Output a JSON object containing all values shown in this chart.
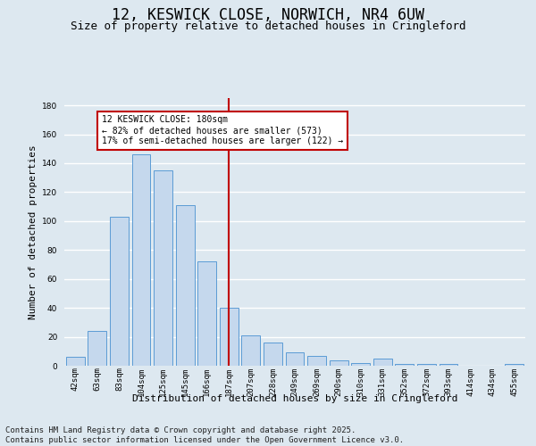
{
  "title": "12, KESWICK CLOSE, NORWICH, NR4 6UW",
  "subtitle": "Size of property relative to detached houses in Cringleford",
  "xlabel": "Distribution of detached houses by size in Cringleford",
  "ylabel": "Number of detached properties",
  "categories": [
    "42sqm",
    "63sqm",
    "83sqm",
    "104sqm",
    "125sqm",
    "145sqm",
    "166sqm",
    "187sqm",
    "207sqm",
    "228sqm",
    "249sqm",
    "269sqm",
    "290sqm",
    "310sqm",
    "331sqm",
    "352sqm",
    "372sqm",
    "393sqm",
    "414sqm",
    "434sqm",
    "455sqm"
  ],
  "values": [
    6,
    24,
    103,
    146,
    135,
    111,
    72,
    40,
    21,
    16,
    9,
    7,
    4,
    2,
    5,
    1,
    1,
    1,
    0,
    0,
    1
  ],
  "bar_color": "#c5d8ed",
  "bar_edge_color": "#5b9bd5",
  "vline_x": 7,
  "vline_color": "#c00000",
  "annotation_text": "12 KESWICK CLOSE: 180sqm\n← 82% of detached houses are smaller (573)\n17% of semi-detached houses are larger (122) →",
  "annotation_box_color": "#ffffff",
  "annotation_box_edge": "#c00000",
  "ylim": [
    0,
    185
  ],
  "yticks": [
    0,
    20,
    40,
    60,
    80,
    100,
    120,
    140,
    160,
    180
  ],
  "footer": "Contains HM Land Registry data © Crown copyright and database right 2025.\nContains public sector information licensed under the Open Government Licence v3.0.",
  "bg_color": "#dde8f0",
  "grid_color": "#ffffff",
  "title_fontsize": 12,
  "subtitle_fontsize": 9,
  "label_fontsize": 8,
  "tick_fontsize": 6.5,
  "footer_fontsize": 6.5,
  "ann_fontsize": 7
}
